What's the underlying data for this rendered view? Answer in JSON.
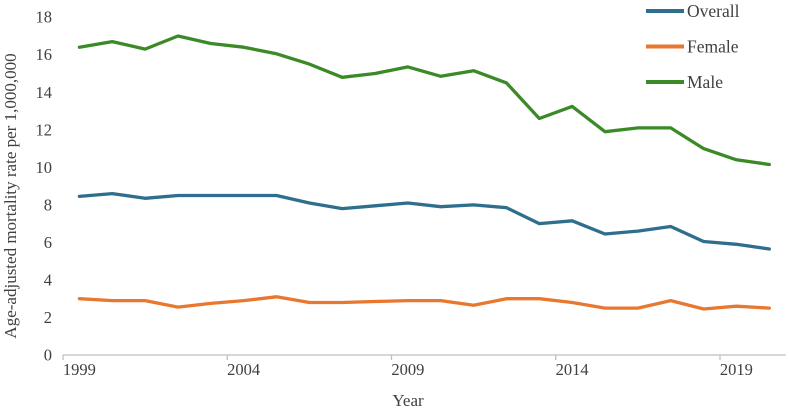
{
  "chart_data": {
    "type": "line",
    "title": "",
    "xlabel": "Year",
    "ylabel": "Age-adjusted mortality rate per 1,000,000",
    "x": [
      1999,
      2000,
      2001,
      2002,
      2003,
      2004,
      2005,
      2006,
      2007,
      2008,
      2009,
      2010,
      2011,
      2012,
      2013,
      2014,
      2015,
      2016,
      2017,
      2018,
      2019,
      2020
    ],
    "series": [
      {
        "name": "Overall",
        "color": "#2f6e8c",
        "values": [
          8.45,
          8.6,
          8.35,
          8.5,
          8.5,
          8.5,
          8.5,
          8.1,
          7.8,
          7.95,
          8.1,
          7.9,
          8.0,
          7.85,
          7.0,
          7.15,
          6.45,
          6.6,
          6.85,
          6.05,
          5.9,
          5.65
        ]
      },
      {
        "name": "Female",
        "color": "#e87730",
        "values": [
          3.0,
          2.9,
          2.9,
          2.55,
          2.75,
          2.9,
          3.1,
          2.8,
          2.8,
          2.85,
          2.9,
          2.9,
          2.65,
          3.0,
          3.0,
          2.8,
          2.5,
          2.5,
          2.9,
          2.45,
          2.6,
          2.5
        ]
      },
      {
        "name": "Male",
        "color": "#3a8a28",
        "values": [
          16.4,
          16.7,
          16.3,
          17.0,
          16.6,
          16.4,
          16.05,
          15.5,
          14.8,
          15.0,
          15.35,
          14.85,
          15.15,
          14.5,
          12.6,
          13.25,
          11.9,
          12.1,
          12.1,
          11.0,
          10.4,
          10.15
        ]
      }
    ],
    "ylim": [
      0,
      18
    ],
    "yticks": [
      0,
      2,
      4,
      6,
      8,
      10,
      12,
      14,
      16,
      18
    ],
    "xticks": [
      1999,
      2004,
      2009,
      2014,
      2019
    ],
    "grid": false,
    "legend_position": "top-right",
    "axis_color": "#bfbfbf",
    "text_color": "#404040"
  }
}
